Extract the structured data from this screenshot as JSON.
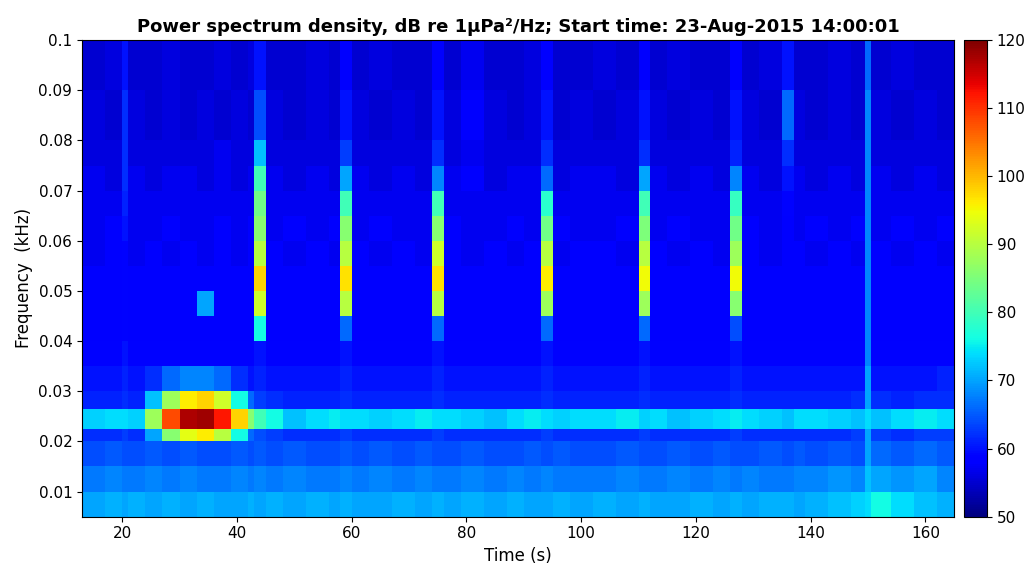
{
  "chart_data": {
    "type": "heatmap",
    "title": "Power spectrum density, dB re 1μPa²/Hz; Start time: 23-Aug-2015 14:00:01",
    "x_label": "Time (s)",
    "y_label": "Frequency  (kHz)",
    "xlim": [
      13,
      165
    ],
    "xticks": [
      20,
      40,
      60,
      80,
      100,
      120,
      140,
      160
    ],
    "ylim": [
      0.005,
      0.1
    ],
    "yticks": [
      0.01,
      0.02,
      0.03,
      0.04,
      0.05,
      0.06,
      0.07,
      0.08,
      0.09,
      0.1
    ],
    "x_edges": [
      13,
      17,
      20,
      21,
      24,
      27,
      30,
      33,
      36,
      39,
      42,
      43,
      45,
      48,
      52,
      56,
      58,
      60,
      63,
      67,
      71,
      74,
      76,
      79,
      83,
      87,
      90,
      93,
      95,
      98,
      102,
      106,
      110,
      112,
      115,
      119,
      123,
      126,
      128,
      131,
      135,
      137,
      139,
      143,
      147,
      149.5,
      150.5,
      154,
      158,
      162,
      165
    ],
    "y_edges": [
      0.005,
      0.01,
      0.015,
      0.02,
      0.0225,
      0.0265,
      0.03,
      0.035,
      0.04,
      0.045,
      0.05,
      0.055,
      0.06,
      0.065,
      0.07,
      0.075,
      0.08,
      0.09,
      0.1
    ],
    "cells": [
      [
        70,
        71,
        70,
        71,
        70,
        71,
        70,
        71,
        70,
        70,
        71,
        70,
        71,
        70,
        71,
        70,
        71,
        70,
        70,
        71,
        70,
        71,
        70,
        71,
        70,
        71,
        70,
        70,
        71,
        70,
        71,
        70,
        71,
        70,
        70,
        71,
        70,
        71,
        70,
        71,
        71,
        70,
        71,
        72,
        73,
        74,
        76,
        74,
        72,
        71
      ],
      [
        67,
        68,
        67,
        67,
        68,
        67,
        68,
        67,
        67,
        68,
        67,
        68,
        67,
        68,
        67,
        67,
        68,
        67,
        68,
        67,
        68,
        67,
        67,
        68,
        67,
        68,
        67,
        68,
        67,
        67,
        67,
        68,
        67,
        67,
        68,
        67,
        68,
        67,
        68,
        67,
        67,
        68,
        68,
        69,
        68,
        72,
        70,
        69,
        70,
        68
      ],
      [
        64,
        65,
        64,
        64,
        65,
        64,
        65,
        64,
        64,
        65,
        64,
        65,
        64,
        65,
        64,
        64,
        65,
        64,
        65,
        64,
        65,
        64,
        64,
        65,
        64,
        64,
        65,
        64,
        65,
        64,
        64,
        65,
        64,
        64,
        65,
        64,
        65,
        64,
        64,
        65,
        64,
        65,
        64,
        65,
        64,
        70,
        66,
        65,
        66,
        65
      ],
      [
        62,
        62,
        63,
        62,
        70,
        86,
        94,
        96,
        90,
        76,
        66,
        64,
        63,
        62,
        62,
        62,
        63,
        62,
        62,
        62,
        62,
        63,
        62,
        62,
        62,
        62,
        62,
        63,
        62,
        62,
        62,
        62,
        63,
        62,
        62,
        62,
        62,
        63,
        62,
        62,
        62,
        62,
        62,
        62,
        63,
        70,
        63,
        62,
        63,
        63
      ],
      [
        73,
        74,
        74,
        73,
        88,
        108,
        117,
        118,
        112,
        98,
        86,
        80,
        76,
        72,
        74,
        75,
        74,
        74,
        73,
        74,
        75,
        74,
        74,
        73,
        72,
        74,
        75,
        74,
        73,
        74,
        74,
        75,
        73,
        74,
        72,
        73,
        74,
        75,
        74,
        73,
        72,
        74,
        74,
        73,
        72,
        74,
        72,
        74,
        75,
        74
      ],
      [
        61,
        61,
        62,
        61,
        72,
        88,
        96,
        98,
        92,
        76,
        66,
        63,
        62,
        61,
        61,
        61,
        62,
        61,
        61,
        61,
        61,
        62,
        61,
        61,
        61,
        61,
        61,
        62,
        61,
        61,
        61,
        61,
        62,
        61,
        61,
        61,
        61,
        62,
        61,
        61,
        61,
        61,
        61,
        61,
        62,
        70,
        62,
        61,
        62,
        62
      ],
      [
        60,
        60,
        61,
        60,
        62,
        66,
        68,
        68,
        66,
        62,
        60,
        61,
        60,
        60,
        60,
        60,
        61,
        60,
        60,
        60,
        60,
        61,
        60,
        60,
        60,
        60,
        60,
        61,
        60,
        60,
        60,
        60,
        61,
        60,
        60,
        60,
        60,
        61,
        60,
        60,
        60,
        60,
        60,
        60,
        60,
        70,
        60,
        60,
        60,
        61
      ],
      [
        59,
        59,
        60,
        59,
        59,
        59,
        59,
        59,
        59,
        59,
        59,
        60,
        59,
        59,
        59,
        59,
        60,
        59,
        59,
        59,
        59,
        60,
        59,
        59,
        59,
        59,
        59,
        60,
        59,
        59,
        59,
        59,
        60,
        59,
        59,
        59,
        59,
        60,
        59,
        59,
        59,
        59,
        59,
        59,
        59,
        68,
        59,
        59,
        59,
        59
      ],
      [
        58,
        58,
        59,
        58,
        58,
        58,
        58,
        58,
        58,
        58,
        58,
        76,
        58,
        58,
        58,
        58,
        66,
        58,
        58,
        58,
        58,
        66,
        58,
        58,
        58,
        58,
        58,
        66,
        58,
        58,
        58,
        58,
        66,
        58,
        58,
        58,
        58,
        64,
        58,
        58,
        58,
        58,
        58,
        58,
        58,
        68,
        58,
        58,
        58,
        58
      ],
      [
        58,
        58,
        59,
        58,
        58,
        58,
        58,
        70,
        58,
        58,
        58,
        92,
        58,
        58,
        58,
        58,
        90,
        58,
        58,
        58,
        58,
        90,
        58,
        58,
        58,
        58,
        58,
        88,
        58,
        58,
        58,
        58,
        88,
        58,
        58,
        58,
        58,
        86,
        58,
        58,
        58,
        58,
        58,
        58,
        58,
        68,
        58,
        58,
        58,
        58
      ],
      [
        58,
        58,
        59,
        58,
        58,
        58,
        58,
        58,
        58,
        58,
        58,
        98,
        58,
        58,
        58,
        58,
        97,
        58,
        58,
        58,
        58,
        97,
        58,
        58,
        58,
        58,
        58,
        96,
        58,
        58,
        58,
        58,
        95,
        58,
        58,
        58,
        58,
        95,
        58,
        58,
        58,
        58,
        58,
        58,
        58,
        68,
        58,
        58,
        58,
        58
      ],
      [
        57,
        58,
        59,
        57,
        58,
        57,
        58,
        57,
        58,
        57,
        58,
        90,
        58,
        57,
        58,
        57,
        90,
        58,
        57,
        58,
        57,
        92,
        58,
        57,
        58,
        57,
        58,
        90,
        57,
        58,
        58,
        57,
        90,
        58,
        57,
        58,
        57,
        88,
        58,
        57,
        58,
        58,
        57,
        58,
        57,
        68,
        58,
        57,
        58,
        57
      ],
      [
        57,
        58,
        60,
        57,
        57,
        58,
        57,
        57,
        58,
        57,
        58,
        86,
        57,
        58,
        57,
        58,
        86,
        57,
        58,
        57,
        57,
        86,
        58,
        57,
        57,
        58,
        57,
        84,
        58,
        57,
        57,
        58,
        85,
        57,
        58,
        57,
        57,
        84,
        58,
        57,
        58,
        57,
        58,
        57,
        58,
        68,
        57,
        58,
        57,
        58
      ],
      [
        57,
        57,
        61,
        57,
        57,
        57,
        57,
        57,
        57,
        57,
        57,
        84,
        57,
        57,
        57,
        57,
        80,
        57,
        57,
        57,
        57,
        80,
        57,
        57,
        57,
        57,
        57,
        78,
        57,
        57,
        57,
        57,
        80,
        57,
        57,
        57,
        57,
        79,
        57,
        57,
        59,
        57,
        57,
        57,
        57,
        68,
        57,
        57,
        57,
        57
      ],
      [
        57,
        56,
        62,
        57,
        56,
        57,
        57,
        56,
        57,
        56,
        57,
        80,
        57,
        56,
        57,
        56,
        70,
        57,
        56,
        57,
        56,
        68,
        57,
        58,
        56,
        57,
        57,
        66,
        56,
        57,
        57,
        56,
        70,
        57,
        56,
        57,
        56,
        68,
        57,
        56,
        60,
        57,
        56,
        57,
        56,
        68,
        57,
        56,
        57,
        56
      ],
      [
        56,
        56,
        62,
        56,
        56,
        56,
        56,
        56,
        57,
        56,
        56,
        72,
        56,
        56,
        56,
        56,
        63,
        56,
        56,
        56,
        56,
        62,
        56,
        57,
        56,
        56,
        56,
        62,
        56,
        56,
        56,
        56,
        62,
        56,
        56,
        56,
        56,
        61,
        56,
        56,
        62,
        56,
        56,
        56,
        56,
        68,
        56,
        56,
        56,
        56
      ],
      [
        56,
        55,
        62,
        56,
        55,
        56,
        55,
        56,
        55,
        56,
        55,
        64,
        56,
        55,
        56,
        55,
        60,
        56,
        55,
        56,
        55,
        60,
        56,
        58,
        56,
        55,
        56,
        60,
        55,
        56,
        55,
        56,
        60,
        56,
        55,
        56,
        55,
        60,
        56,
        55,
        66,
        56,
        55,
        56,
        55,
        68,
        56,
        55,
        56,
        55
      ],
      [
        55,
        56,
        60,
        55,
        55,
        56,
        55,
        55,
        56,
        55,
        56,
        60,
        55,
        55,
        56,
        55,
        58,
        55,
        56,
        55,
        55,
        58,
        55,
        57,
        55,
        55,
        56,
        58,
        55,
        55,
        56,
        55,
        58,
        55,
        56,
        55,
        55,
        58,
        55,
        56,
        60,
        55,
        55,
        56,
        55,
        66,
        55,
        56,
        55,
        55
      ]
    ],
    "colorbar": {
      "range": [
        50,
        120
      ],
      "ticks": [
        50,
        60,
        70,
        80,
        90,
        100,
        110,
        120
      ]
    }
  }
}
